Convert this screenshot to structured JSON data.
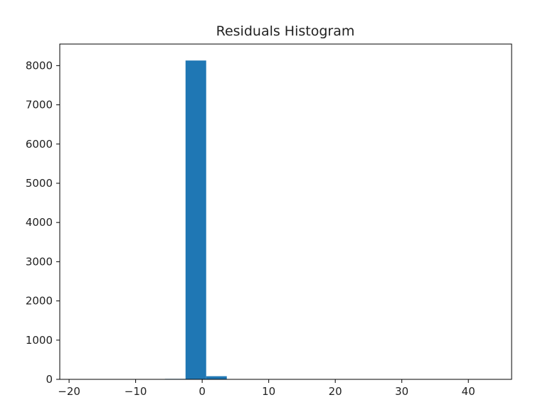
{
  "chart_data": {
    "type": "bar",
    "title": "Residuals Histogram",
    "xlabel": "",
    "ylabel": "",
    "xlim": [
      -21.4,
      46.5
    ],
    "ylim": [
      0,
      8550
    ],
    "x_ticks": [
      -20,
      -10,
      0,
      10,
      20,
      30,
      40
    ],
    "x_tick_labels": [
      "−20",
      "−10",
      "0",
      "10",
      "20",
      "30",
      "40"
    ],
    "y_ticks": [
      0,
      1000,
      2000,
      3000,
      4000,
      5000,
      6000,
      7000,
      8000
    ],
    "y_tick_labels": [
      "0",
      "1000",
      "2000",
      "3000",
      "4000",
      "5000",
      "6000",
      "7000",
      "8000"
    ],
    "bin_edges": [
      -18.0,
      -14.9,
      -11.8,
      -8.7,
      -5.6,
      -2.5,
      0.6,
      3.7,
      6.8,
      9.9,
      13.0,
      16.1,
      19.2,
      22.3,
      25.4,
      28.5,
      31.6,
      34.7,
      37.8,
      40.9,
      44.0
    ],
    "values": [
      1,
      2,
      3,
      6,
      12,
      8130,
      80,
      6,
      3,
      2,
      1,
      1,
      1,
      0,
      0,
      0,
      0,
      0,
      0,
      1
    ],
    "grid": false,
    "bar_color": "#1f77b4"
  }
}
